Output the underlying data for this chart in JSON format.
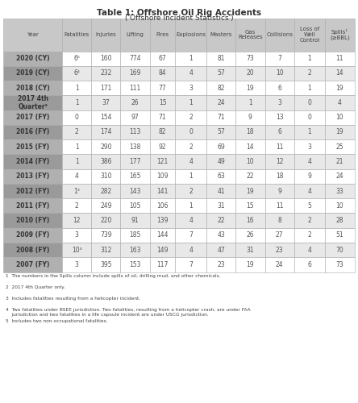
{
  "title": "Table 1: Offshore Oil Rig Accidents",
  "subtitle": "('Offshore Incident Statistics')",
  "columns": [
    "Year",
    "Fatalities",
    "Injuries",
    "Lifting",
    "Fires",
    "Explosions",
    "Masters",
    "Gas\nReleases",
    "Collisions",
    "Loss of\nWell\nControl",
    "Spills¹\n(≥BBL)"
  ],
  "col_widths": [
    1.6,
    0.8,
    0.8,
    0.8,
    0.7,
    0.85,
    0.8,
    0.8,
    0.8,
    0.85,
    0.8
  ],
  "rows": [
    [
      "2020 (CY)",
      "6⁵",
      "160",
      "774",
      "67",
      "1",
      "81",
      "73",
      "7",
      "1",
      "11"
    ],
    [
      "2019 (CY)",
      "6⁴",
      "232",
      "169",
      "84",
      "4",
      "57",
      "20",
      "10",
      "2",
      "14"
    ],
    [
      "2018 (CY)",
      "1",
      "171",
      "111",
      "77",
      "3",
      "82",
      "19",
      "6",
      "1",
      "19"
    ],
    [
      "2017 4th\nQuarter²",
      "1",
      "37",
      "26",
      "15",
      "1",
      "24",
      "1",
      "3",
      "0",
      "4"
    ],
    [
      "2017 (FY)",
      "0",
      "154",
      "97",
      "71",
      "2",
      "71",
      "9",
      "13",
      "0",
      "10"
    ],
    [
      "2016 (FY)",
      "2",
      "174",
      "113",
      "82",
      "0",
      "57",
      "18",
      "6",
      "1",
      "19"
    ],
    [
      "2015 (FY)",
      "1",
      "290",
      "138",
      "92",
      "2",
      "69",
      "14",
      "11",
      "3",
      "25"
    ],
    [
      "2014 (FY)",
      "1",
      "386",
      "177",
      "121",
      "4",
      "49",
      "10",
      "12",
      "4",
      "21"
    ],
    [
      "2013 (FY)",
      "4",
      "310",
      "165",
      "109",
      "1",
      "63",
      "22",
      "18",
      "9",
      "24"
    ],
    [
      "2012 (FY)",
      "1³",
      "282",
      "143",
      "141",
      "2",
      "41",
      "19",
      "9",
      "4",
      "33"
    ],
    [
      "2011 (FY)",
      "2",
      "249",
      "105",
      "106",
      "1",
      "31",
      "15",
      "11",
      "5",
      "10"
    ],
    [
      "2010 (FY)",
      "12",
      "220",
      "91",
      "139",
      "4",
      "22",
      "16",
      "8",
      "2",
      "28"
    ],
    [
      "2009 (FY)",
      "3",
      "739",
      "185",
      "144",
      "7",
      "43",
      "26",
      "27",
      "2",
      "51"
    ],
    [
      "2008 (FY)",
      "10³",
      "312",
      "163",
      "149",
      "4",
      "47",
      "31",
      "23",
      "4",
      "70"
    ],
    [
      "2007 (FY)",
      "3",
      "395",
      "153",
      "117",
      "7",
      "23",
      "19",
      "24",
      "6",
      "73"
    ]
  ],
  "footnotes": [
    "1  The numbers in the Spills column include spills of oil, drilling mud, and other chemicals.",
    "2  2017 4th Quarter only.",
    "3  Includes fatalities resulting from a helicopter incident.",
    "4  Two fatalities under BSEE jurisdiction. Two fatalities, resulting from a helicopter crash, are under FAA\n    jurisdiction and two fatalities in a life capsule incident are under USCG jurisdiction.",
    "5  Includes two non-occupational fatalities."
  ],
  "header_bg": "#c8c8c8",
  "row_bg_odd": "#ffffff",
  "row_bg_even": "#e8e8e8",
  "year_bg": "#b0b0b0",
  "header_text_color": "#444444",
  "cell_text_color": "#555555",
  "year_text_color": "#333333",
  "border_color": "#aaaaaa",
  "title_color": "#333333"
}
